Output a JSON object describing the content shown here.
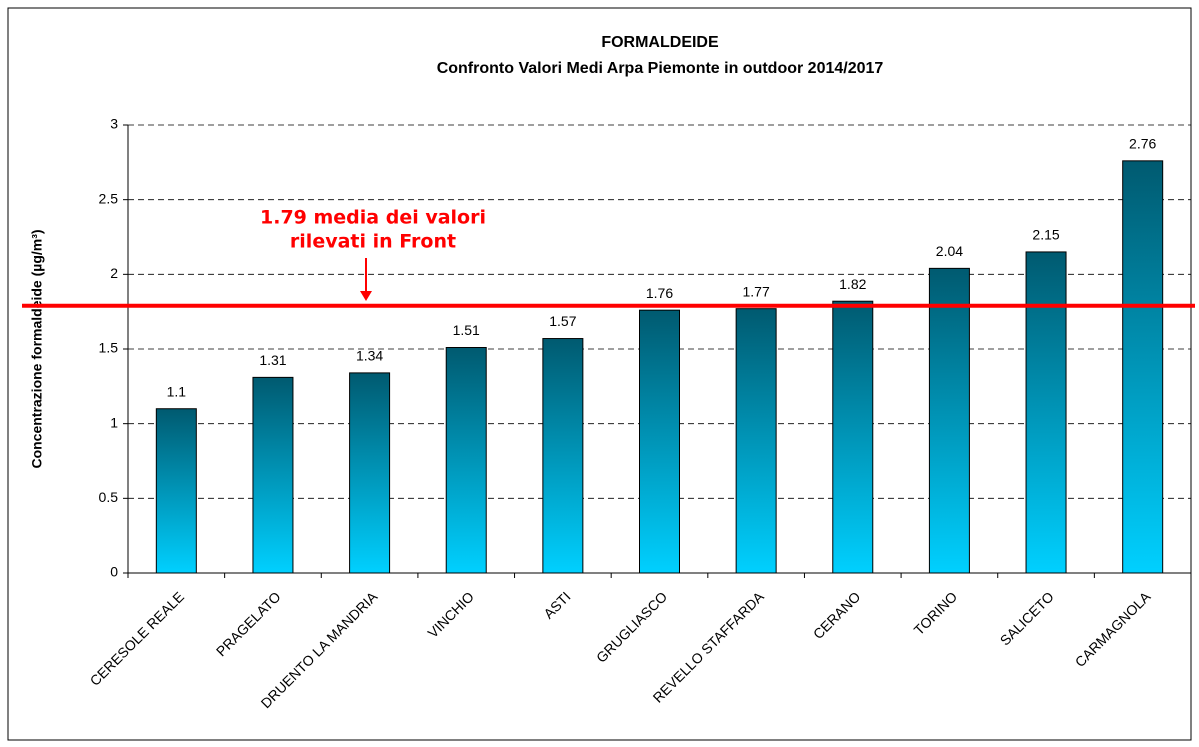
{
  "chart_data": {
    "type": "bar",
    "title": "FORMALDEIDE",
    "subtitle": "Confronto Valori Medi Arpa Piemonte in outdoor 2014/2017",
    "y_label": "Concentrazione formaldeide (µg/m³)",
    "categories": [
      "CERESOLE REALE",
      "PRAGELATO",
      "DRUENTO LA MANDRIA",
      "VINCHIO",
      "ASTI",
      "GRUGLIASCO",
      "REVELLO STAFFARDA",
      "CERANO",
      "TORINO",
      "SALICETO",
      "CARMAGNOLA"
    ],
    "values": [
      1.1,
      1.31,
      1.34,
      1.51,
      1.57,
      1.76,
      1.77,
      1.82,
      2.04,
      2.15,
      2.76
    ],
    "color": [
      "#005a70",
      "#00d0ff"
    ],
    "ylim": [
      0,
      3
    ],
    "yticks": [
      0,
      0.5,
      1,
      1.5,
      2,
      2.5,
      3
    ],
    "grid": true,
    "reference_line": {
      "value": 1.79,
      "color": "#ff0000",
      "label": [
        "1.79 media dei valori",
        "rilevati in Front"
      ]
    }
  }
}
